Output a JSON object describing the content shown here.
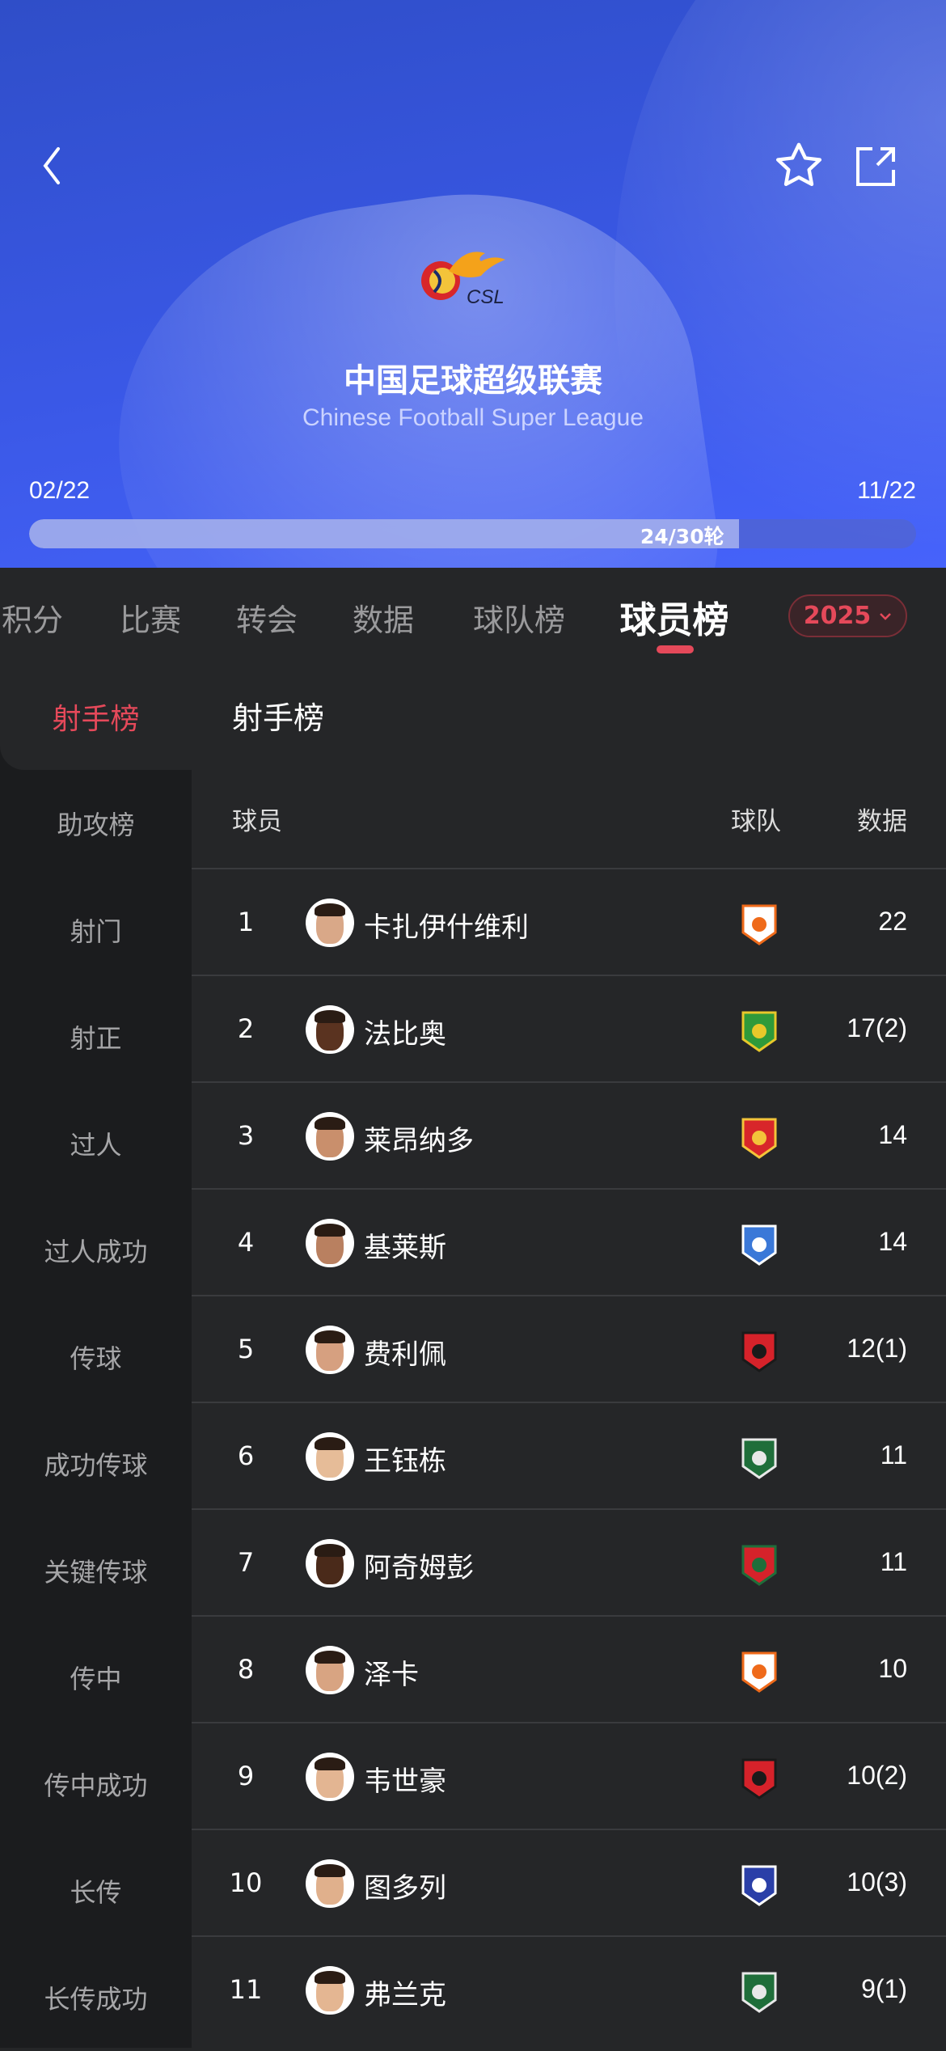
{
  "header": {
    "title": "中国足球超级联赛",
    "subtitle": "Chinese Football Super League",
    "logo_text": "CSL",
    "start_date": "02/22",
    "end_date": "11/22",
    "round_label": "24/30轮",
    "round_progress": 0.8,
    "icons": [
      "back-icon",
      "star-icon",
      "share-icon"
    ]
  },
  "tabs": [
    {
      "label": "积分"
    },
    {
      "label": "比赛"
    },
    {
      "label": "转会"
    },
    {
      "label": "数据"
    },
    {
      "label": "球队榜"
    },
    {
      "label": "球员榜",
      "active": true
    }
  ],
  "season": "2025",
  "sidebar": [
    "射手榜",
    "助攻榜",
    "射门",
    "射正",
    "过人",
    "过人成功",
    "传球",
    "成功传球",
    "关键传球",
    "传中",
    "传中成功",
    "长传",
    "长传成功"
  ],
  "page_title": "射手榜",
  "columns": {
    "player": "球员",
    "team": "球队",
    "data": "数据"
  },
  "rows": [
    {
      "rank": "1",
      "name": "卡扎伊什维利",
      "value": "22",
      "team_colors": [
        "#ffffff",
        "#ef6a1a"
      ]
    },
    {
      "rank": "2",
      "name": "法比奥",
      "value": "17(2)",
      "team_colors": [
        "#2f9a3a",
        "#e8c82a"
      ]
    },
    {
      "rank": "3",
      "name": "莱昂纳多",
      "value": "14",
      "team_colors": [
        "#d8262a",
        "#f3c43a"
      ]
    },
    {
      "rank": "4",
      "name": "基莱斯",
      "value": "14",
      "team_colors": [
        "#3a78d8",
        "#ffffff"
      ]
    },
    {
      "rank": "5",
      "name": "费利佩",
      "value": "12(1)",
      "team_colors": [
        "#d6222a",
        "#1a1a1a"
      ]
    },
    {
      "rank": "6",
      "name": "王钰栋",
      "value": "11",
      "team_colors": [
        "#1f6e3a",
        "#e8e8e8"
      ]
    },
    {
      "rank": "7",
      "name": "阿奇姆彭",
      "value": "11",
      "team_colors": [
        "#d6222a",
        "#1f6e3a"
      ]
    },
    {
      "rank": "8",
      "name": "泽卡",
      "value": "10",
      "team_colors": [
        "#ffffff",
        "#ef6a1a"
      ]
    },
    {
      "rank": "9",
      "name": "韦世豪",
      "value": "10(2)",
      "team_colors": [
        "#d6222a",
        "#1a1a1a"
      ]
    },
    {
      "rank": "10",
      "name": "图多列",
      "value": "10(3)",
      "team_colors": [
        "#2a3fa8",
        "#ffffff"
      ]
    },
    {
      "rank": "11",
      "name": "弗兰克",
      "value": "9(1)",
      "team_colors": [
        "#1f6e3a",
        "#e8e8e8"
      ]
    }
  ],
  "colors": {
    "accent": "#e5495a",
    "header_blue": "#3a58e6",
    "bg": "#252628",
    "sidebar_bg": "#1b1c1e"
  }
}
